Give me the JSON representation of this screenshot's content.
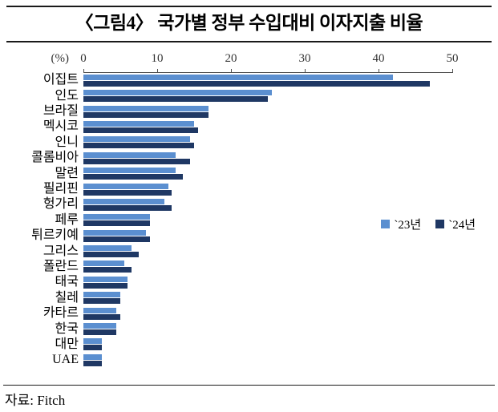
{
  "figure": {
    "title": "〈그림4〉 국가별 정부 수입대비 이자지출 비율",
    "source": "자료: Fitch"
  },
  "chart_data": {
    "type": "bar",
    "orientation": "horizontal",
    "title": "〈그림4〉 국가별 정부 수입대비 이자지출 비율",
    "unit_label": "(%)",
    "xlim": [
      0,
      50
    ],
    "x_ticks": [
      0,
      10,
      20,
      30,
      40,
      50
    ],
    "grid": false,
    "legend_position": "center-right",
    "categories": [
      "이집트",
      "인도",
      "브라질",
      "멕시코",
      "인니",
      "콜롬비아",
      "말련",
      "필리핀",
      "헝가리",
      "페루",
      "튀르키예",
      "그리스",
      "폴란드",
      "태국",
      "칠레",
      "카타르",
      "한국",
      "대만",
      "UAE"
    ],
    "series": [
      {
        "name": "`23년",
        "color": "#5B8FD0",
        "values": [
          42,
          25.5,
          17,
          15,
          14.5,
          12.5,
          12.5,
          11.5,
          11,
          9,
          8.5,
          6.5,
          5.5,
          6,
          5,
          4.5,
          4.5,
          2.5,
          2.5
        ]
      },
      {
        "name": "`24년",
        "color": "#1F3864",
        "values": [
          47,
          25,
          17,
          15.5,
          15,
          14.5,
          13.5,
          12,
          12,
          9,
          9,
          7.5,
          6.5,
          6,
          5,
          5,
          4.5,
          2.5,
          2.5
        ]
      }
    ]
  }
}
